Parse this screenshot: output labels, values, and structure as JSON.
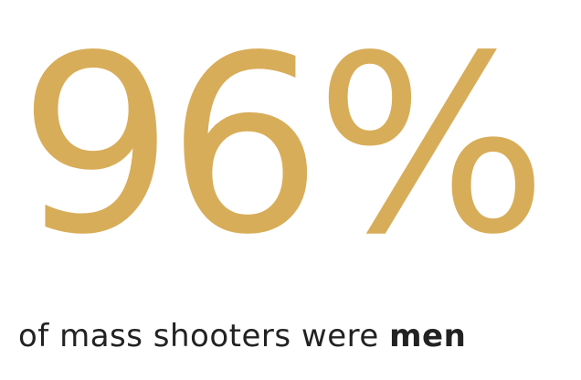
{
  "stat": {
    "value": "96%",
    "color": "#D8AD59"
  },
  "caption": {
    "prefix": "of mass shooters were ",
    "emphasis": "men"
  }
}
